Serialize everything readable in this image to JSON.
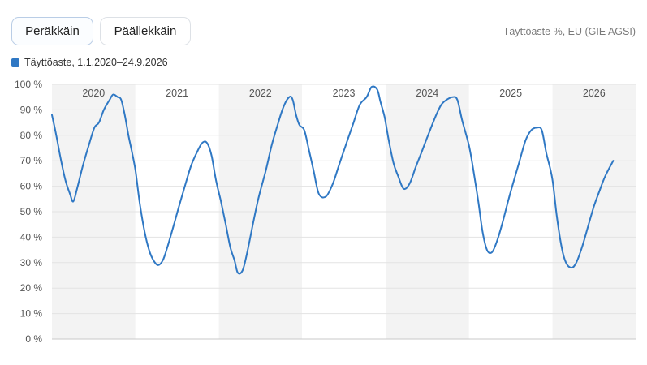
{
  "controls": {
    "sequential_label": "Peräkkäin",
    "overlay_label": "Päällekkäin"
  },
  "source_label": "Täyttöaste %, EU (GIE AGSI)",
  "chart_data": {
    "type": "line",
    "title": "",
    "xlabel": "",
    "ylabel": "",
    "ylim": [
      0,
      100
    ],
    "y_ticks": [
      "0 %",
      "10 %",
      "20 %",
      "30 %",
      "40 %",
      "50 %",
      "60 %",
      "70 %",
      "80 %",
      "90 %",
      "100 %"
    ],
    "year_bands": [
      "2020",
      "2021",
      "2022",
      "2023",
      "2024",
      "2025",
      "2026"
    ],
    "x_range": [
      "2020-01-01",
      "2026-12-31"
    ],
    "grid": true,
    "legend": "top-left",
    "series": [
      {
        "name": "Täyttöaste, 1.1.2020–24.9.2026",
        "color": "#2f78c4",
        "points": [
          [
            "2020-01-01",
            88
          ],
          [
            "2020-01-20",
            80
          ],
          [
            "2020-02-10",
            70
          ],
          [
            "2020-03-01",
            62
          ],
          [
            "2020-03-20",
            57
          ],
          [
            "2020-04-03",
            54
          ],
          [
            "2020-04-20",
            59
          ],
          [
            "2020-05-15",
            68
          ],
          [
            "2020-06-10",
            76
          ],
          [
            "2020-07-05",
            83
          ],
          [
            "2020-07-25",
            85
          ],
          [
            "2020-08-15",
            90
          ],
          [
            "2020-09-10",
            94
          ],
          [
            "2020-09-25",
            96
          ],
          [
            "2020-10-15",
            95
          ],
          [
            "2020-10-30",
            94
          ],
          [
            "2020-11-15",
            88
          ],
          [
            "2020-12-01",
            80
          ],
          [
            "2020-12-15",
            74
          ],
          [
            "2021-01-01",
            66
          ],
          [
            "2021-01-20",
            53
          ],
          [
            "2021-02-10",
            42
          ],
          [
            "2021-03-01",
            35
          ],
          [
            "2021-03-20",
            31
          ],
          [
            "2021-04-10",
            29
          ],
          [
            "2021-05-01",
            31
          ],
          [
            "2021-05-20",
            36
          ],
          [
            "2021-06-15",
            44
          ],
          [
            "2021-07-10",
            52
          ],
          [
            "2021-08-05",
            60
          ],
          [
            "2021-09-01",
            68
          ],
          [
            "2021-09-25",
            73
          ],
          [
            "2021-10-20",
            77
          ],
          [
            "2021-11-10",
            77
          ],
          [
            "2021-11-30",
            72
          ],
          [
            "2021-12-20",
            62
          ],
          [
            "2022-01-10",
            54
          ],
          [
            "2022-01-31",
            45
          ],
          [
            "2022-02-20",
            36
          ],
          [
            "2022-03-10",
            31
          ],
          [
            "2022-03-25",
            26
          ],
          [
            "2022-04-15",
            27
          ],
          [
            "2022-05-05",
            34
          ],
          [
            "2022-06-01",
            46
          ],
          [
            "2022-06-25",
            56
          ],
          [
            "2022-07-25",
            66
          ],
          [
            "2022-08-20",
            76
          ],
          [
            "2022-09-15",
            84
          ],
          [
            "2022-10-10",
            91
          ],
          [
            "2022-11-05",
            95
          ],
          [
            "2022-11-20",
            94
          ],
          [
            "2022-12-05",
            88
          ],
          [
            "2022-12-20",
            84
          ],
          [
            "2023-01-10",
            82
          ],
          [
            "2023-01-31",
            74
          ],
          [
            "2023-02-20",
            66
          ],
          [
            "2023-03-15",
            57
          ],
          [
            "2023-04-15",
            56
          ],
          [
            "2023-05-15",
            61
          ],
          [
            "2023-06-10",
            68
          ],
          [
            "2023-07-10",
            76
          ],
          [
            "2023-08-10",
            84
          ],
          [
            "2023-09-10",
            92
          ],
          [
            "2023-10-10",
            95
          ],
          [
            "2023-11-01",
            99
          ],
          [
            "2023-11-25",
            98
          ],
          [
            "2023-12-10",
            93
          ],
          [
            "2023-12-28",
            87
          ],
          [
            "2024-01-15",
            78
          ],
          [
            "2024-02-05",
            69
          ],
          [
            "2024-02-25",
            64
          ],
          [
            "2024-03-20",
            59
          ],
          [
            "2024-04-15",
            61
          ],
          [
            "2024-05-10",
            67
          ],
          [
            "2024-06-05",
            73
          ],
          [
            "2024-07-05",
            80
          ],
          [
            "2024-08-05",
            87
          ],
          [
            "2024-09-01",
            92
          ],
          [
            "2024-09-25",
            94
          ],
          [
            "2024-10-20",
            95
          ],
          [
            "2024-11-10",
            94
          ],
          [
            "2024-12-01",
            86
          ],
          [
            "2024-12-31",
            76
          ],
          [
            "2025-01-20",
            66
          ],
          [
            "2025-02-10",
            54
          ],
          [
            "2025-03-01",
            42
          ],
          [
            "2025-03-20",
            35
          ],
          [
            "2025-04-10",
            34
          ],
          [
            "2025-05-01",
            38
          ],
          [
            "2025-05-25",
            45
          ],
          [
            "2025-06-20",
            54
          ],
          [
            "2025-07-15",
            62
          ],
          [
            "2025-08-10",
            70
          ],
          [
            "2025-09-05",
            78
          ],
          [
            "2025-09-30",
            82
          ],
          [
            "2025-10-25",
            83
          ],
          [
            "2025-11-15",
            82
          ],
          [
            "2025-12-05",
            73
          ],
          [
            "2025-12-31",
            63
          ],
          [
            "2026-01-20",
            48
          ],
          [
            "2026-02-10",
            36
          ],
          [
            "2026-03-01",
            30
          ],
          [
            "2026-03-25",
            28
          ],
          [
            "2026-04-15",
            30
          ],
          [
            "2026-05-10",
            36
          ],
          [
            "2026-06-05",
            44
          ],
          [
            "2026-07-01",
            52
          ],
          [
            "2026-07-25",
            58
          ],
          [
            "2026-08-20",
            64
          ],
          [
            "2026-09-24",
            70
          ]
        ]
      }
    ]
  }
}
